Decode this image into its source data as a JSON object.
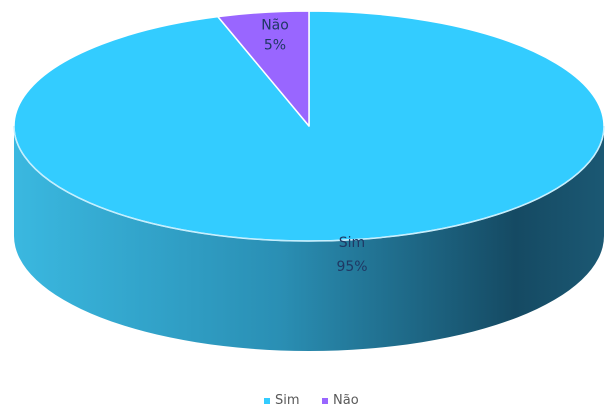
{
  "chart_data": {
    "type": "pie",
    "title": "",
    "style": "3d",
    "categories": [
      "Sim",
      "Não"
    ],
    "values": [
      95,
      5
    ],
    "data_labels": [
      {
        "category": "Sim",
        "percent": "95%"
      },
      {
        "category": "Não",
        "percent": "5%"
      }
    ],
    "colors": [
      "#33ccff",
      "#9966ff"
    ],
    "label_colors": [
      "#1f3864",
      "#1f3864"
    ],
    "legend": {
      "position": "bottom",
      "entries": [
        "Sim",
        "Não"
      ]
    }
  }
}
